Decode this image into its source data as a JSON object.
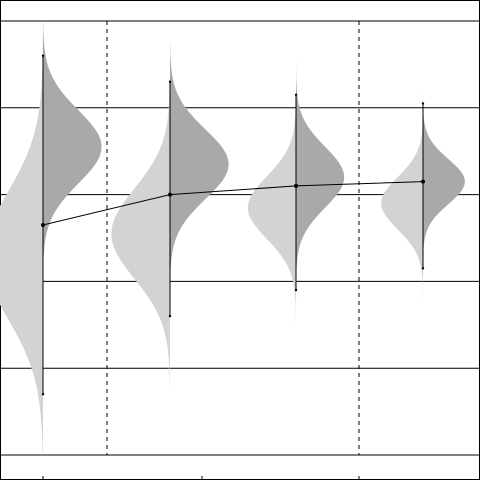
{
  "chart_data": {
    "type": "violin",
    "title": "",
    "xlabel": "",
    "ylabel": "",
    "categories": [
      "",
      "",
      "",
      ""
    ],
    "ylim": [
      0,
      5
    ],
    "grid": {
      "horizontal": true,
      "vertical": true,
      "vertical_style": "dashed"
    },
    "colors": {
      "left_half": "#d3d3d3",
      "right_half": "#a9a9a9",
      "line": "#000000",
      "grid": "#000000"
    },
    "violins": [
      {
        "left_mean": 2.3,
        "left_sd": 0.72,
        "right_mean": 3.55,
        "right_sd": 0.42,
        "height": 140,
        "ylow": 0.0,
        "yhigh": 5.0
      },
      {
        "left_mean": 2.55,
        "left_sd": 0.52,
        "right_mean": 3.35,
        "right_sd": 0.4,
        "height": 140,
        "ylow": 0.8,
        "yhigh": 4.75
      },
      {
        "left_mean": 2.85,
        "left_sd": 0.36,
        "right_mean": 3.2,
        "right_sd": 0.35,
        "height": 115,
        "ylow": 1.35,
        "yhigh": 4.65
      },
      {
        "left_mean": 2.9,
        "left_sd": 0.3,
        "right_mean": 3.15,
        "right_sd": 0.26,
        "height": 100,
        "ylow": 1.4,
        "yhigh": 4.4
      }
    ],
    "means": [
      2.65,
      3.0,
      3.1,
      3.15
    ],
    "errorbars": [
      {
        "low": 0.7,
        "high": 4.6
      },
      {
        "low": 1.6,
        "high": 4.3
      },
      {
        "low": 1.9,
        "high": 4.15
      },
      {
        "low": 2.15,
        "high": 4.05
      }
    ]
  }
}
